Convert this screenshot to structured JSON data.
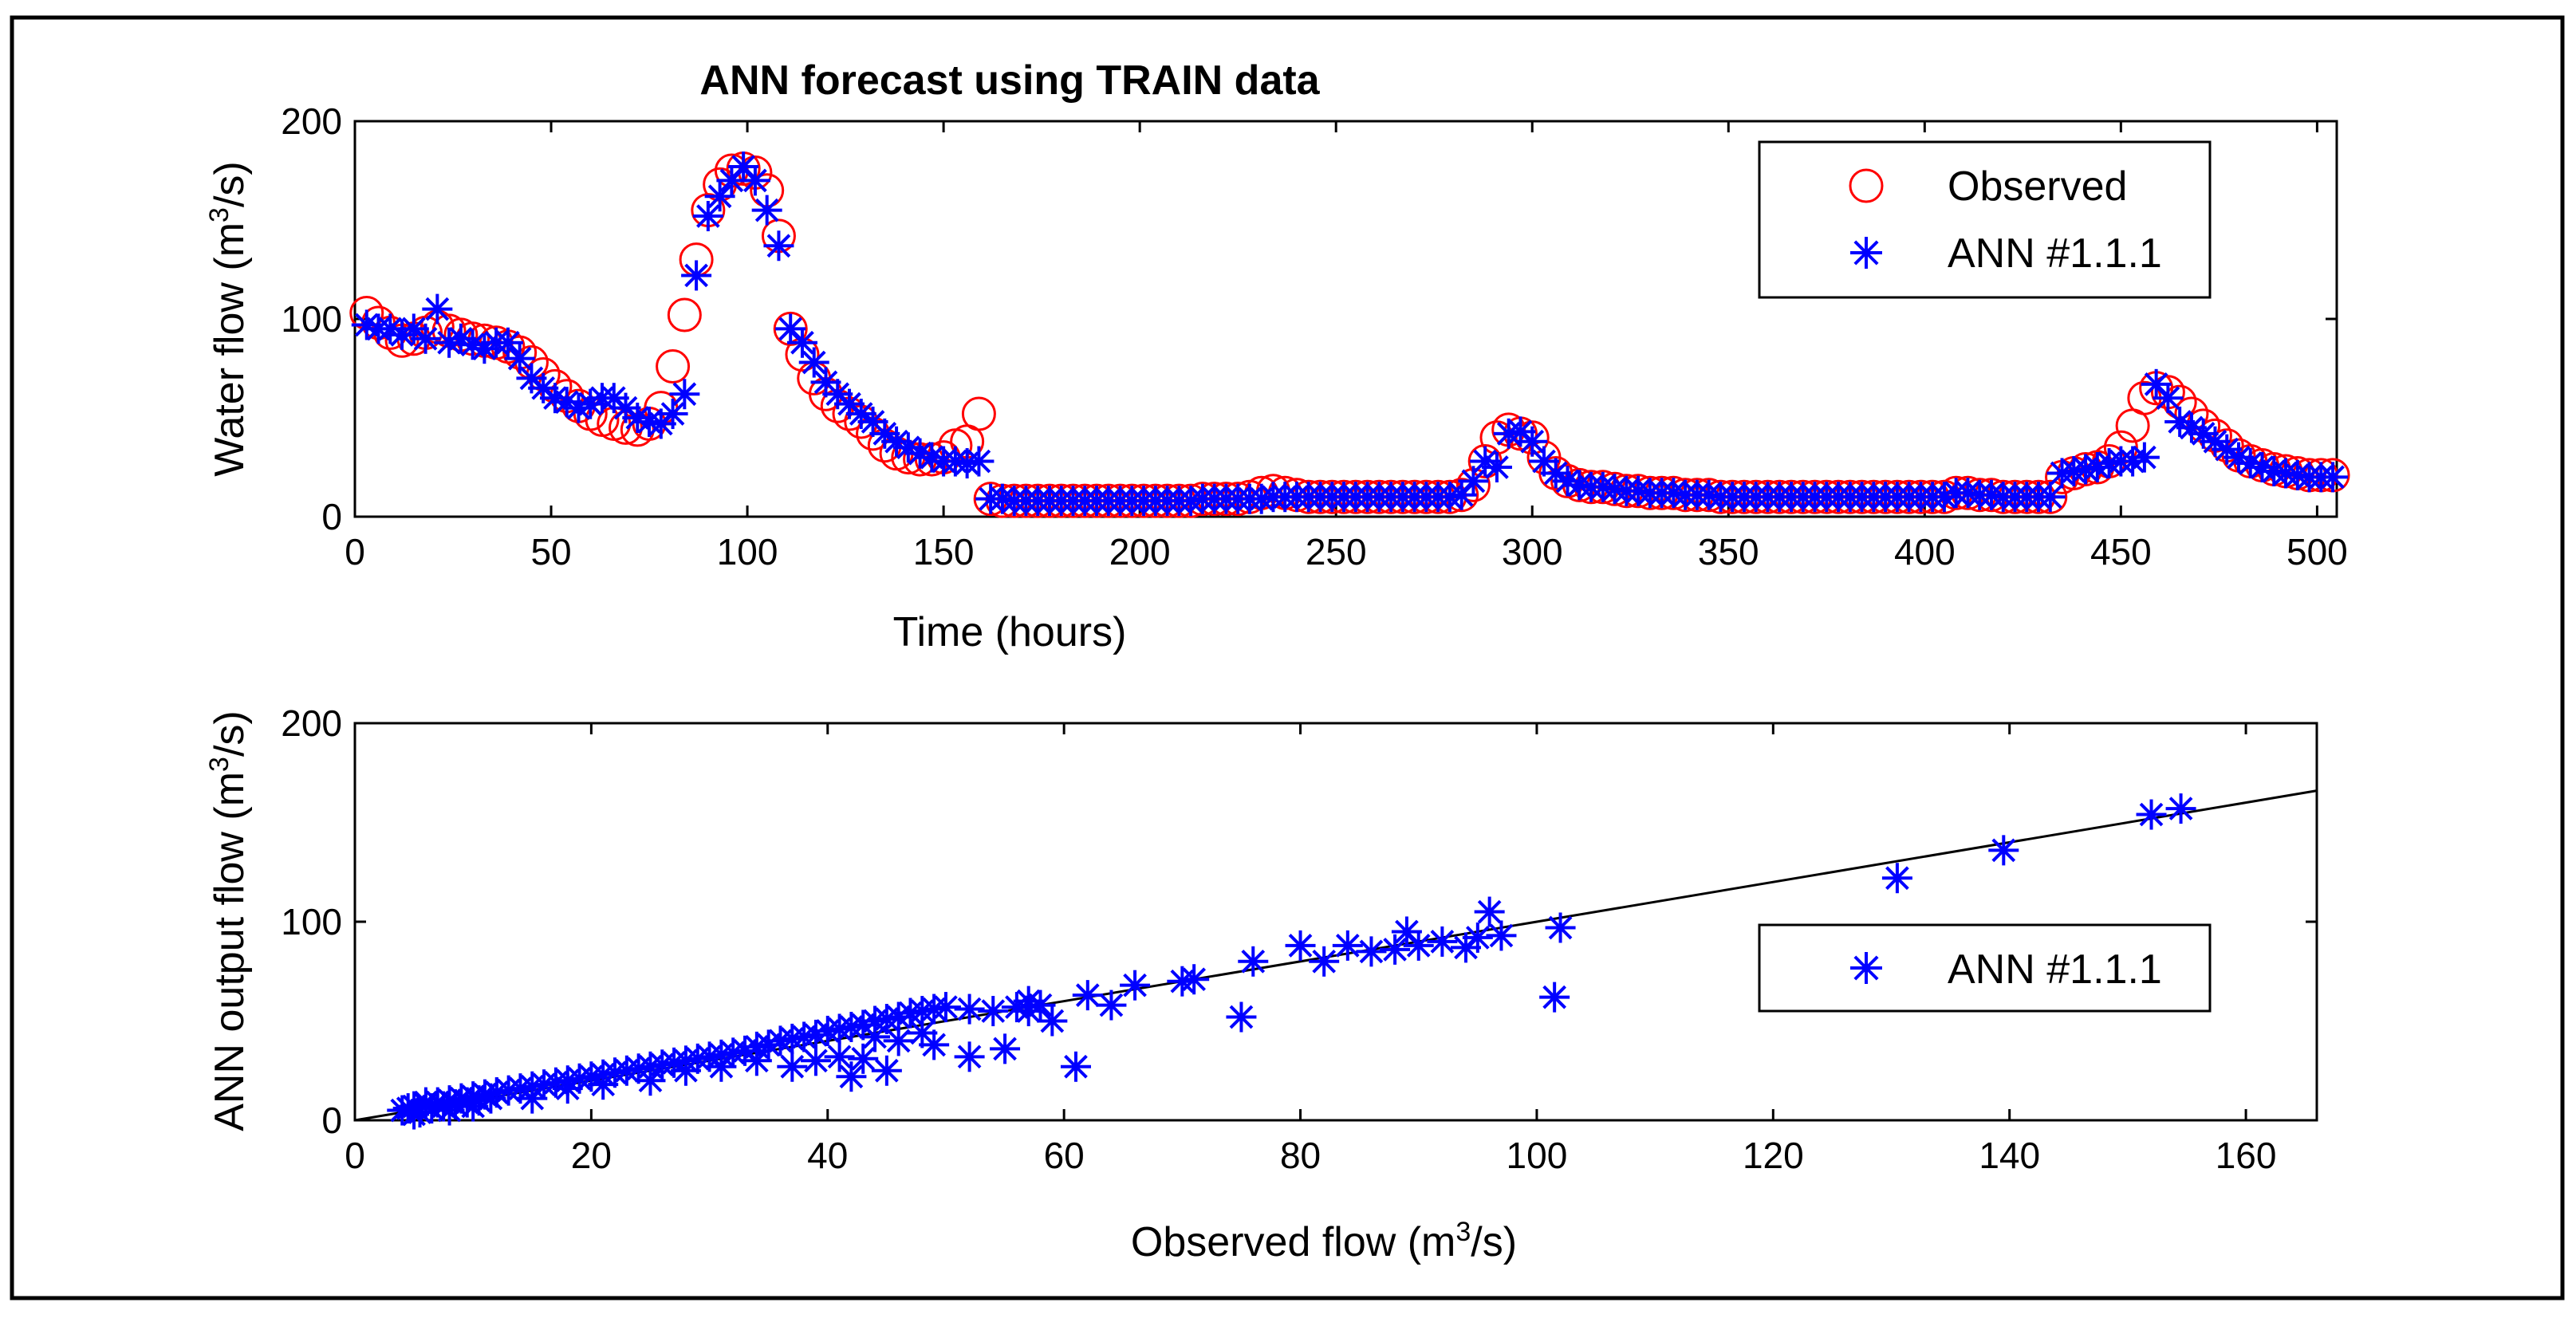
{
  "figure_title": "ANN forecast using TRAIN data",
  "colors": {
    "observed": "#ff0000",
    "ann": "#0000ff",
    "axes": "#000000",
    "fit_line": "#000000"
  },
  "chart_data": [
    {
      "type": "scatter",
      "title": "ANN forecast using TRAIN data",
      "xlabel": "Time (hours)",
      "ylabel_base": "Water flow (m",
      "ylabel_sup": "3",
      "ylabel_end": "/s)",
      "xlim": [
        0,
        505
      ],
      "ylim": [
        0,
        200
      ],
      "xticks": [
        0,
        50,
        100,
        150,
        200,
        250,
        300,
        350,
        400,
        450,
        500
      ],
      "yticks": [
        0,
        100,
        200
      ],
      "legend": {
        "position": "top-right",
        "entries": [
          "Observed",
          "ANN #1.1.1"
        ]
      },
      "x": [
        3,
        6,
        9,
        12,
        15,
        18,
        21,
        24,
        27,
        30,
        33,
        36,
        39,
        42,
        45,
        48,
        51,
        54,
        57,
        60,
        63,
        66,
        69,
        72,
        75,
        78,
        81,
        84,
        87,
        90,
        93,
        96,
        99,
        102,
        105,
        108,
        111,
        114,
        117,
        120,
        123,
        126,
        129,
        132,
        135,
        138,
        141,
        144,
        147,
        150,
        153,
        156,
        159,
        162,
        165,
        168,
        171,
        174,
        177,
        180,
        183,
        186,
        189,
        192,
        195,
        198,
        201,
        204,
        207,
        210,
        213,
        216,
        219,
        222,
        225,
        228,
        231,
        234,
        237,
        240,
        243,
        246,
        249,
        252,
        255,
        258,
        261,
        264,
        267,
        270,
        273,
        276,
        279,
        282,
        285,
        288,
        291,
        294,
        297,
        300,
        303,
        306,
        309,
        312,
        315,
        318,
        321,
        324,
        327,
        330,
        333,
        336,
        339,
        342,
        345,
        348,
        351,
        354,
        357,
        360,
        363,
        366,
        369,
        372,
        375,
        378,
        381,
        384,
        387,
        390,
        393,
        396,
        399,
        402,
        405,
        408,
        411,
        414,
        417,
        420,
        423,
        426,
        429,
        432,
        435,
        438,
        441,
        444,
        447,
        450,
        453,
        456,
        459,
        462,
        465,
        468,
        471,
        474,
        477,
        480,
        483,
        486,
        489,
        492,
        495,
        498,
        501,
        504
      ],
      "series": [
        {
          "name": "Observed",
          "values": [
            103,
            98,
            93,
            89,
            90,
            93,
            96,
            94,
            92,
            90,
            89,
            88,
            86,
            83,
            78,
            72,
            66,
            61,
            56,
            52,
            49,
            47,
            45,
            44,
            47,
            55,
            76,
            102,
            130,
            155,
            168,
            175,
            176,
            174,
            165,
            142,
            95,
            82,
            70,
            62,
            56,
            52,
            48,
            42,
            36,
            32,
            30,
            29,
            29,
            30,
            36,
            38,
            52,
            9,
            8,
            8,
            8,
            8,
            8,
            8,
            8,
            8,
            8,
            8,
            8,
            8,
            8,
            8,
            8,
            8,
            8,
            9,
            9,
            9,
            9,
            10,
            12,
            13,
            12,
            11,
            10,
            10,
            10,
            10,
            10,
            10,
            10,
            10,
            10,
            10,
            10,
            10,
            10,
            11,
            16,
            28,
            40,
            44,
            42,
            40,
            30,
            22,
            18,
            16,
            15,
            15,
            14,
            13,
            13,
            12,
            12,
            12,
            11,
            11,
            11,
            10,
            10,
            10,
            10,
            10,
            10,
            10,
            10,
            10,
            10,
            10,
            10,
            10,
            10,
            10,
            10,
            10,
            10,
            10,
            10,
            12,
            12,
            11,
            11,
            10,
            10,
            10,
            10,
            10,
            20,
            22,
            24,
            25,
            28,
            35,
            46,
            60,
            65,
            63,
            58,
            52,
            46,
            41,
            36,
            31,
            28,
            26,
            24,
            23,
            22,
            21,
            21,
            21
          ]
        },
        {
          "name": "ANN #1.1.1",
          "values": [
            97,
            95,
            95,
            92,
            95,
            90,
            105,
            88,
            90,
            87,
            85,
            88,
            88,
            80,
            70,
            65,
            60,
            58,
            55,
            57,
            60,
            60,
            55,
            50,
            48,
            47,
            52,
            62,
            122,
            152,
            162,
            170,
            177,
            170,
            155,
            137,
            95,
            88,
            78,
            68,
            62,
            57,
            52,
            48,
            42,
            38,
            35,
            32,
            30,
            28,
            28,
            27,
            28,
            9,
            9,
            8,
            8,
            8,
            8,
            8,
            8,
            8,
            8,
            8,
            8,
            8,
            8,
            8,
            8,
            8,
            8,
            9,
            9,
            9,
            9,
            9,
            9,
            10,
            10,
            10,
            10,
            10,
            10,
            10,
            10,
            10,
            10,
            10,
            10,
            10,
            10,
            10,
            10,
            11,
            18,
            28,
            25,
            42,
            43,
            38,
            28,
            22,
            18,
            16,
            15,
            15,
            14,
            13,
            13,
            12,
            12,
            12,
            11,
            11,
            11,
            10,
            10,
            10,
            10,
            10,
            10,
            10,
            10,
            10,
            10,
            10,
            10,
            10,
            10,
            10,
            10,
            10,
            10,
            10,
            10,
            12,
            12,
            11,
            11,
            10,
            10,
            10,
            10,
            10,
            22,
            23,
            24,
            25,
            27,
            28,
            28,
            30,
            67,
            60,
            48,
            45,
            42,
            38,
            34,
            30,
            27,
            25,
            23,
            22,
            21,
            20,
            20,
            20
          ]
        }
      ]
    },
    {
      "type": "scatter",
      "title": "",
      "xlabel_base": "Observed flow (m",
      "xlabel_sup": "3",
      "xlabel_end": "/s)",
      "ylabel_base": "ANN output flow (m",
      "ylabel_sup": "3",
      "ylabel_end": "/s)",
      "xlim": [
        0,
        166
      ],
      "ylim": [
        0,
        200
      ],
      "xticks": [
        0,
        20,
        40,
        60,
        80,
        100,
        120,
        140,
        160
      ],
      "yticks": [
        0,
        100,
        200
      ],
      "fit_line": {
        "x": [
          0,
          166
        ],
        "y": [
          0,
          166
        ]
      },
      "legend": {
        "position": "right",
        "entries": [
          "ANN #1.1.1"
        ]
      },
      "series": [
        {
          "name": "ANN #1.1.1",
          "x": [
            4,
            4.5,
            5,
            5.5,
            6,
            6.5,
            7,
            7.5,
            8,
            8.5,
            9,
            9.5,
            10,
            10.5,
            11,
            11.5,
            12,
            13,
            14,
            15,
            16,
            17,
            18,
            19,
            20,
            21,
            22,
            23,
            24,
            25,
            26,
            27,
            28,
            29,
            30,
            31,
            32,
            33,
            34,
            35,
            36,
            37,
            38,
            39,
            40,
            41,
            42,
            43,
            44,
            45,
            46,
            47,
            48,
            49,
            50,
            52,
            54,
            56,
            57,
            58,
            59,
            62,
            64,
            66,
            70,
            71,
            75,
            76,
            80,
            82,
            84,
            86,
            88,
            89,
            90,
            92,
            94,
            95,
            96,
            97,
            101.5,
            102,
            130.5,
            139.5,
            152,
            154.5,
            5,
            6,
            8,
            10,
            12,
            15,
            18,
            21,
            25,
            28,
            31,
            34,
            37,
            39,
            41,
            42,
            43,
            44,
            45,
            46,
            48,
            49,
            52,
            55,
            57,
            61
          ],
          "y": [
            5,
            6,
            7,
            4,
            8,
            6,
            9,
            7,
            10,
            8,
            11,
            9,
            12,
            10,
            13,
            11,
            14,
            15,
            16,
            17,
            18,
            19,
            20,
            21,
            22,
            23,
            24,
            25,
            26,
            27,
            28,
            29,
            30,
            31,
            32,
            33,
            34,
            35,
            37,
            38,
            40,
            41,
            42,
            43,
            45,
            46,
            47,
            48,
            50,
            51,
            52,
            54,
            55,
            56,
            57,
            56,
            55,
            57,
            60,
            58,
            50,
            63,
            58,
            68,
            70,
            71,
            52,
            80,
            88,
            80,
            88,
            85,
            86,
            95,
            88,
            90,
            87,
            92,
            105,
            93,
            62,
            97,
            122,
            136,
            154,
            157,
            3,
            9,
            5,
            7,
            14,
            11,
            16,
            18,
            20,
            25,
            27,
            30,
            27,
            30,
            32,
            22,
            31,
            42,
            25,
            40,
            44,
            38,
            32,
            36,
            55,
            27
          ]
        }
      ]
    }
  ]
}
